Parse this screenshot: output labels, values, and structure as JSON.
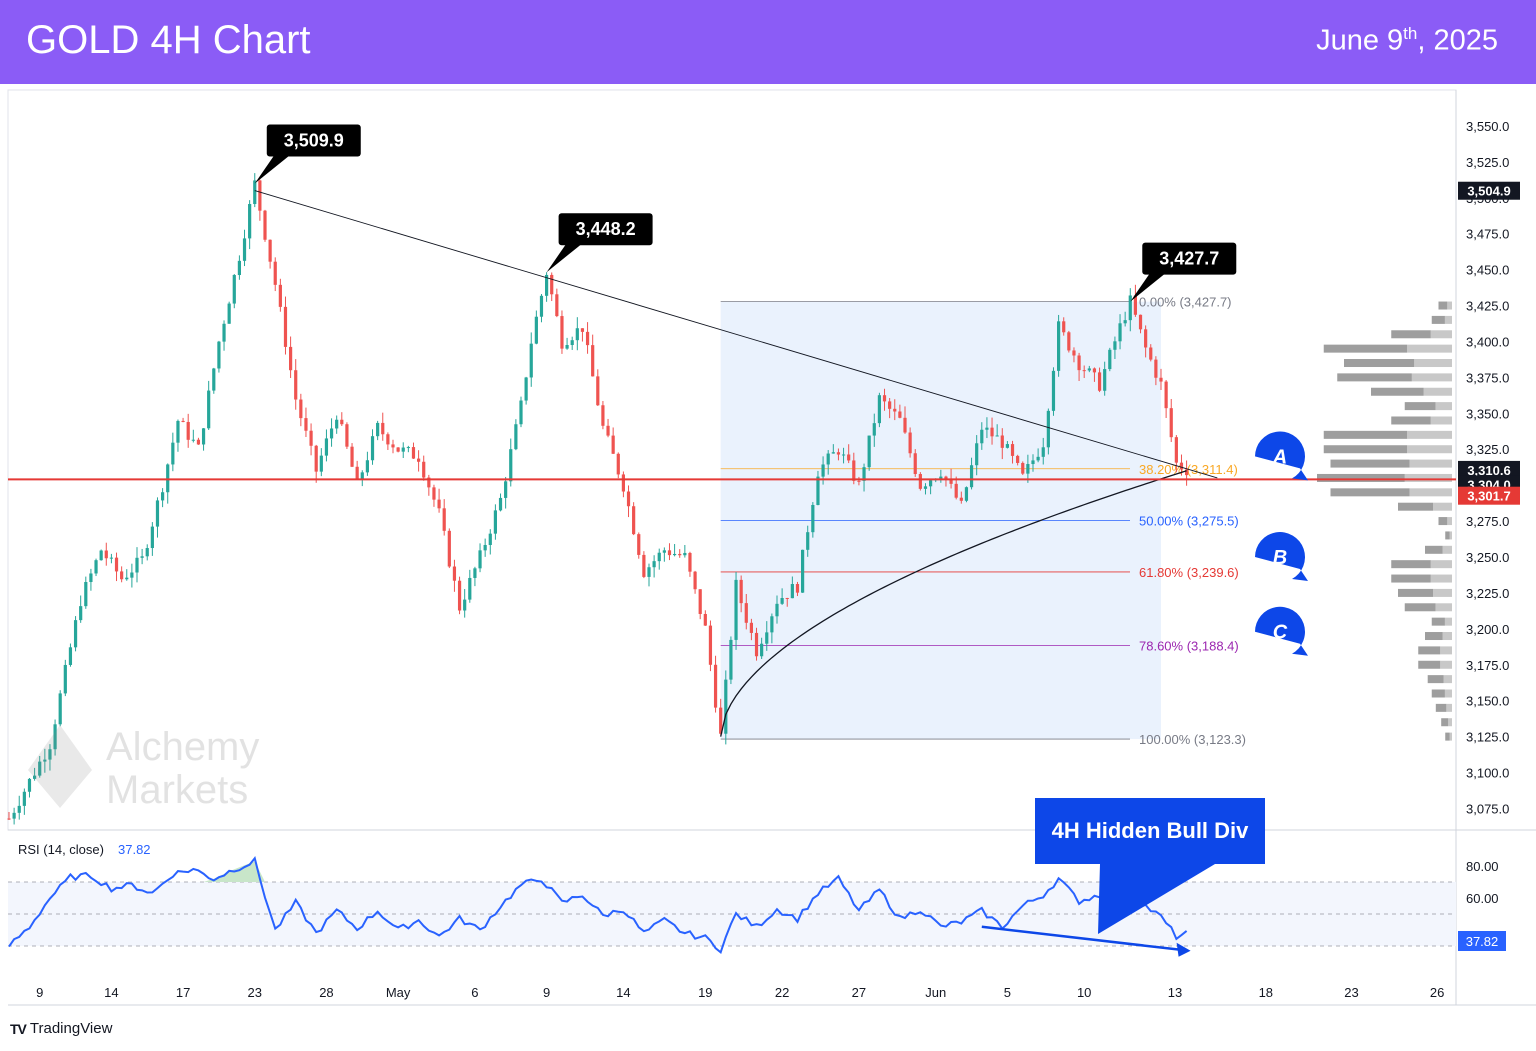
{
  "header": {
    "title": "GOLD 4H Chart",
    "date_main": "June 9",
    "date_sup": "th",
    "date_year": ", 2025"
  },
  "watermark": {
    "line1": "Alchemy",
    "line2": "Markets"
  },
  "footer": {
    "brand": "TradingView"
  },
  "colors": {
    "header_bg": "#8b5cf6",
    "bull": "#26a69a",
    "bear": "#ef5350",
    "support_line": "#e53935",
    "rsi_line": "#2962ff",
    "fib_box": "#eaf2fd",
    "annotation_blue": "#0d47e8"
  },
  "chart_data": [
    {
      "type": "candlestick",
      "title": "GOLD 4H Chart",
      "y_axis": {
        "ticks": [
          "3,550.0",
          "3,525.0",
          "3,500.0",
          "3,475.0",
          "3,450.0",
          "3,425.0",
          "3,400.0",
          "3,375.0",
          "3,350.0",
          "3,325.0",
          "3,300.0",
          "3,275.0",
          "3,250.0",
          "3,225.0",
          "3,200.0",
          "3,175.0",
          "3,150.0",
          "3,125.0",
          "3,100.0",
          "3,075.0"
        ],
        "range": [
          3060,
          3575
        ]
      },
      "x_axis": {
        "ticks": [
          "9",
          "14",
          "17",
          "23",
          "28",
          "May",
          "6",
          "9",
          "14",
          "19",
          "22",
          "27",
          "Jun",
          "5",
          "10",
          "13",
          "18",
          "23",
          "26"
        ]
      },
      "price_path": [
        [
          0,
          3068
        ],
        [
          8,
          3120
        ],
        [
          14,
          3220
        ],
        [
          18,
          3255
        ],
        [
          22,
          3235
        ],
        [
          26,
          3248
        ],
        [
          30,
          3300
        ],
        [
          33,
          3345
        ],
        [
          37,
          3325
        ],
        [
          41,
          3400
        ],
        [
          45,
          3460
        ],
        [
          48,
          3509.9
        ],
        [
          52,
          3440
        ],
        [
          56,
          3360
        ],
        [
          60,
          3310
        ],
        [
          64,
          3350
        ],
        [
          68,
          3300
        ],
        [
          72,
          3340
        ],
        [
          76,
          3325
        ],
        [
          80,
          3320
        ],
        [
          84,
          3280
        ],
        [
          88,
          3215
        ],
        [
          92,
          3250
        ],
        [
          96,
          3290
        ],
        [
          100,
          3355
        ],
        [
          102,
          3400
        ],
        [
          105,
          3448.2
        ],
        [
          108,
          3400
        ],
        [
          112,
          3410
        ],
        [
          116,
          3340
        ],
        [
          120,
          3300
        ],
        [
          124,
          3240
        ],
        [
          128,
          3255
        ],
        [
          132,
          3250
        ],
        [
          136,
          3200
        ],
        [
          139,
          3125
        ],
        [
          142,
          3230
        ],
        [
          146,
          3185
        ],
        [
          150,
          3220
        ],
        [
          154,
          3230
        ],
        [
          158,
          3310
        ],
        [
          162,
          3325
        ],
        [
          166,
          3300
        ],
        [
          170,
          3360
        ],
        [
          174,
          3345
        ],
        [
          178,
          3300
        ],
        [
          182,
          3310
        ],
        [
          186,
          3285
        ],
        [
          190,
          3340
        ],
        [
          194,
          3330
        ],
        [
          198,
          3305
        ],
        [
          202,
          3330
        ],
        [
          205,
          3410
        ],
        [
          209,
          3385
        ],
        [
          213,
          3370
        ],
        [
          217,
          3410
        ],
        [
          219,
          3427.7
        ],
        [
          222,
          3395
        ],
        [
          225,
          3370
        ],
        [
          228,
          3315
        ],
        [
          230,
          3311
        ]
      ],
      "swing_labels": [
        {
          "label": "3,509.9",
          "bar": 48,
          "price": 3509.9
        },
        {
          "label": "3,448.2",
          "bar": 105,
          "price": 3448.2
        },
        {
          "label": "3,427.7",
          "bar": 219,
          "price": 3427.7
        }
      ],
      "trendline": {
        "from": {
          "bar": 48,
          "price": 3505
        },
        "to": {
          "bar": 236,
          "price": 3305
        }
      },
      "support_level": 3304.0,
      "price_badges": [
        {
          "label": "3,504.9",
          "price": 3504.9,
          "bg": "#131722"
        },
        {
          "label": "3,310.6",
          "price": 3310.6,
          "bg": "#131722"
        },
        {
          "label": "3,304.0",
          "price": 3304.0,
          "bg": "#131722"
        },
        {
          "label": "3,301.7",
          "price": 3301.7,
          "bg": "#e53935"
        }
      ],
      "fibonacci": {
        "start_bar": 139,
        "end_bar": 225,
        "levels": [
          {
            "label": "0.00% (3,427.7)",
            "price": 3427.7,
            "color": "#787b86"
          },
          {
            "label": "38.20% (3,311.4)",
            "price": 3311.4,
            "color": "#f9a825"
          },
          {
            "label": "50.00% (3,275.5)",
            "price": 3275.5,
            "color": "#2962ff"
          },
          {
            "label": "61.80% (3,239.6)",
            "price": 3239.6,
            "color": "#e53935"
          },
          {
            "label": "78.60% (3,188.4)",
            "price": 3188.4,
            "color": "#9c27b0"
          },
          {
            "label": "100.00% (3,123.3)",
            "price": 3123.3,
            "color": "#787b86"
          }
        ]
      },
      "targets": [
        {
          "label": "A",
          "price": 3320
        },
        {
          "label": "B",
          "price": 3250
        },
        {
          "label": "C",
          "price": 3198
        }
      ],
      "volume_profile": [
        {
          "price": 3425,
          "v": 0.1
        },
        {
          "price": 3415,
          "v": 0.15
        },
        {
          "price": 3405,
          "v": 0.45
        },
        {
          "price": 3395,
          "v": 0.95
        },
        {
          "price": 3385,
          "v": 0.8
        },
        {
          "price": 3375,
          "v": 0.85
        },
        {
          "price": 3365,
          "v": 0.6
        },
        {
          "price": 3355,
          "v": 0.35
        },
        {
          "price": 3345,
          "v": 0.45
        },
        {
          "price": 3335,
          "v": 0.95
        },
        {
          "price": 3325,
          "v": 0.95
        },
        {
          "price": 3315,
          "v": 0.9
        },
        {
          "price": 3305,
          "v": 1.0
        },
        {
          "price": 3295,
          "v": 0.9
        },
        {
          "price": 3285,
          "v": 0.4
        },
        {
          "price": 3275,
          "v": 0.1
        },
        {
          "price": 3265,
          "v": 0.05
        },
        {
          "price": 3255,
          "v": 0.2
        },
        {
          "price": 3245,
          "v": 0.45
        },
        {
          "price": 3235,
          "v": 0.45
        },
        {
          "price": 3225,
          "v": 0.4
        },
        {
          "price": 3215,
          "v": 0.35
        },
        {
          "price": 3205,
          "v": 0.15
        },
        {
          "price": 3195,
          "v": 0.2
        },
        {
          "price": 3185,
          "v": 0.25
        },
        {
          "price": 3175,
          "v": 0.25
        },
        {
          "price": 3165,
          "v": 0.18
        },
        {
          "price": 3155,
          "v": 0.15
        },
        {
          "price": 3145,
          "v": 0.12
        },
        {
          "price": 3135,
          "v": 0.08
        },
        {
          "price": 3125,
          "v": 0.05
        }
      ]
    },
    {
      "type": "line",
      "title": "RSI (14, close)",
      "current_value": "37.82",
      "y_axis": {
        "ticks": [
          "80.00",
          "60.00"
        ],
        "range": [
          15,
          95
        ],
        "band": [
          30,
          70
        ]
      },
      "values_path": [
        [
          0,
          30
        ],
        [
          4,
          42
        ],
        [
          8,
          60
        ],
        [
          12,
          73
        ],
        [
          16,
          74
        ],
        [
          20,
          66
        ],
        [
          24,
          68
        ],
        [
          28,
          63
        ],
        [
          32,
          75
        ],
        [
          36,
          78
        ],
        [
          40,
          72
        ],
        [
          44,
          78
        ],
        [
          48,
          83
        ],
        [
          52,
          40
        ],
        [
          56,
          57
        ],
        [
          60,
          38
        ],
        [
          64,
          52
        ],
        [
          68,
          41
        ],
        [
          72,
          52
        ],
        [
          76,
          40
        ],
        [
          80,
          46
        ],
        [
          84,
          36
        ],
        [
          88,
          47
        ],
        [
          92,
          40
        ],
        [
          96,
          55
        ],
        [
          100,
          68
        ],
        [
          104,
          72
        ],
        [
          108,
          57
        ],
        [
          112,
          62
        ],
        [
          116,
          49
        ],
        [
          120,
          53
        ],
        [
          124,
          38
        ],
        [
          128,
          46
        ],
        [
          132,
          38
        ],
        [
          136,
          35
        ],
        [
          139,
          28
        ],
        [
          142,
          50
        ],
        [
          146,
          42
        ],
        [
          150,
          53
        ],
        [
          154,
          47
        ],
        [
          158,
          63
        ],
        [
          162,
          72
        ],
        [
          166,
          52
        ],
        [
          170,
          65
        ],
        [
          174,
          47
        ],
        [
          178,
          53
        ],
        [
          182,
          42
        ],
        [
          186,
          45
        ],
        [
          190,
          52
        ],
        [
          194,
          42
        ],
        [
          198,
          55
        ],
        [
          202,
          62
        ],
        [
          205,
          72
        ],
        [
          209,
          58
        ],
        [
          213,
          62
        ],
        [
          217,
          58
        ],
        [
          219,
          60
        ],
        [
          222,
          55
        ],
        [
          225,
          48
        ],
        [
          228,
          36
        ],
        [
          230,
          37.82
        ]
      ],
      "divergence_arrow": {
        "from": {
          "bar": 190,
          "value": 42
        },
        "to": {
          "bar": 230,
          "value": 27
        }
      },
      "callout": "4H Hidden Bull Div"
    }
  ]
}
